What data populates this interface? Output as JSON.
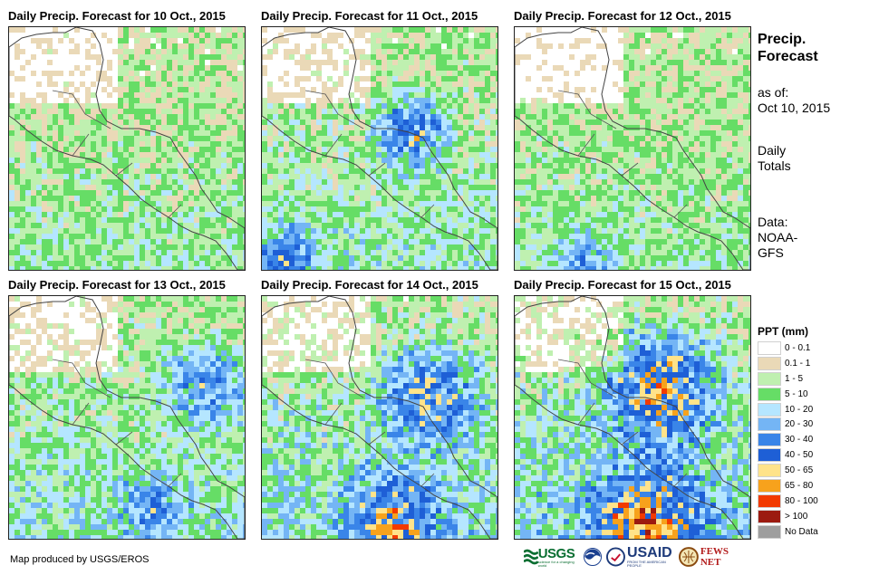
{
  "panels": [
    {
      "title": "Daily Precip. Forecast for 10 Oct., 2015"
    },
    {
      "title": "Daily Precip. Forecast for 11 Oct., 2015"
    },
    {
      "title": "Daily Precip. Forecast for 12 Oct., 2015"
    },
    {
      "title": "Daily Precip. Forecast for 13 Oct., 2015"
    },
    {
      "title": "Daily Precip. Forecast for 14 Oct., 2015"
    },
    {
      "title": "Daily Precip. Forecast for 15 Oct., 2015"
    }
  ],
  "side": {
    "title_line1": "Precip.",
    "title_line2": "Forecast",
    "asof_label": "as of:",
    "asof_date": "Oct 10, 2015",
    "totals_line1": "Daily",
    "totals_line2": "Totals",
    "data_label": "Data:",
    "data_source_line1": "NOAA-",
    "data_source_line2": "GFS"
  },
  "legend": {
    "title": "PPT (mm)",
    "items": [
      {
        "label": "0 - 0.1",
        "color": "#ffffff"
      },
      {
        "label": "0.1 - 1",
        "color": "#ead9b7"
      },
      {
        "label": "1 - 5",
        "color": "#bff0b0"
      },
      {
        "label": "5 - 10",
        "color": "#66dd66"
      },
      {
        "label": "10 - 20",
        "color": "#b5e6ff"
      },
      {
        "label": "20 - 30",
        "color": "#74b5f5"
      },
      {
        "label": "30 - 40",
        "color": "#3a85e8"
      },
      {
        "label": "40 - 50",
        "color": "#1e5fd6"
      },
      {
        "label": "50 - 65",
        "color": "#ffe38a"
      },
      {
        "label": "65 - 80",
        "color": "#f7a21c"
      },
      {
        "label": "80 - 100",
        "color": "#f23a00"
      },
      {
        "label": "> 100",
        "color": "#9c1a10"
      },
      {
        "label": "No Data",
        "color": "#9e9e9e"
      }
    ]
  },
  "footer": {
    "credit": "Map produced by USGS/EROS"
  },
  "logos": {
    "usgs": "USGS",
    "usgs_tagline": "science for a changing world",
    "usaid": "USAID",
    "usaid_tagline": "FROM THE AMERICAN PEOPLE",
    "fewsnet": "FEWS NET"
  }
}
